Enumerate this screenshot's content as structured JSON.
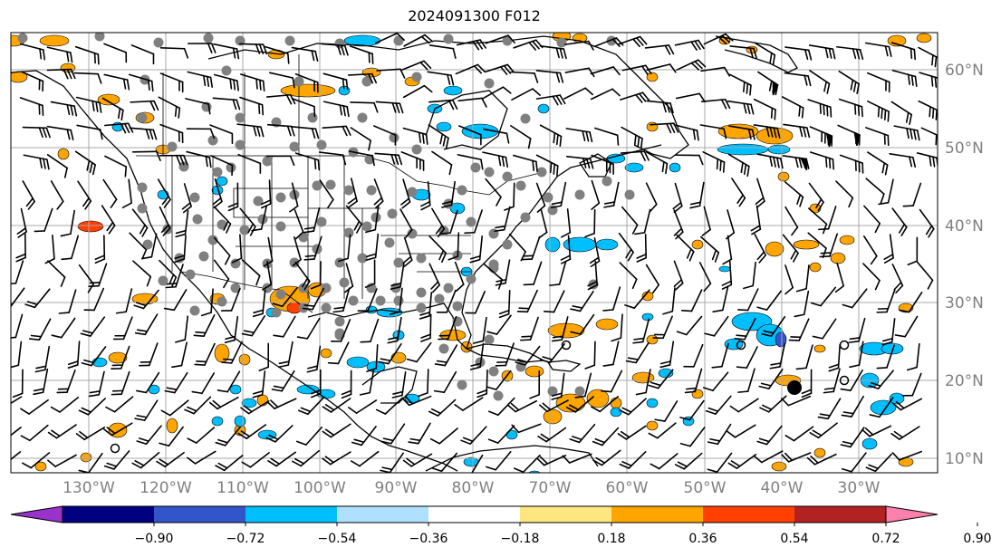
{
  "title": "2024091300 F012",
  "lon_labels": [
    "130°W",
    "120°W",
    "110°W",
    "100°W",
    "90°W",
    "80°W",
    "70°W",
    "60°W",
    "50°W",
    "40°W",
    "30°W"
  ],
  "lat_labels": [
    "60°N",
    "50°N",
    "40°N",
    "30°N",
    "20°N",
    "10°N"
  ],
  "colorbar": {
    "ticks": [
      "−0.90",
      "−0.72",
      "−0.54",
      "−0.36",
      "−0.18",
      "0.18",
      "0.36",
      "0.54",
      "0.72",
      "0.90"
    ],
    "colors": [
      "#9933cc",
      "#000080",
      "#3355cc",
      "#00bfff",
      "#b0e0ff",
      "#ffffff",
      "#ffe680",
      "#ffa500",
      "#ff4000",
      "#b22222",
      "#ff80aa"
    ]
  },
  "legend_colors": {
    "positive": "#ffa500",
    "strong_positive": "#ff4000",
    "negative": "#00bfff",
    "strong_negative": "#3355cc",
    "station": "#808080"
  }
}
